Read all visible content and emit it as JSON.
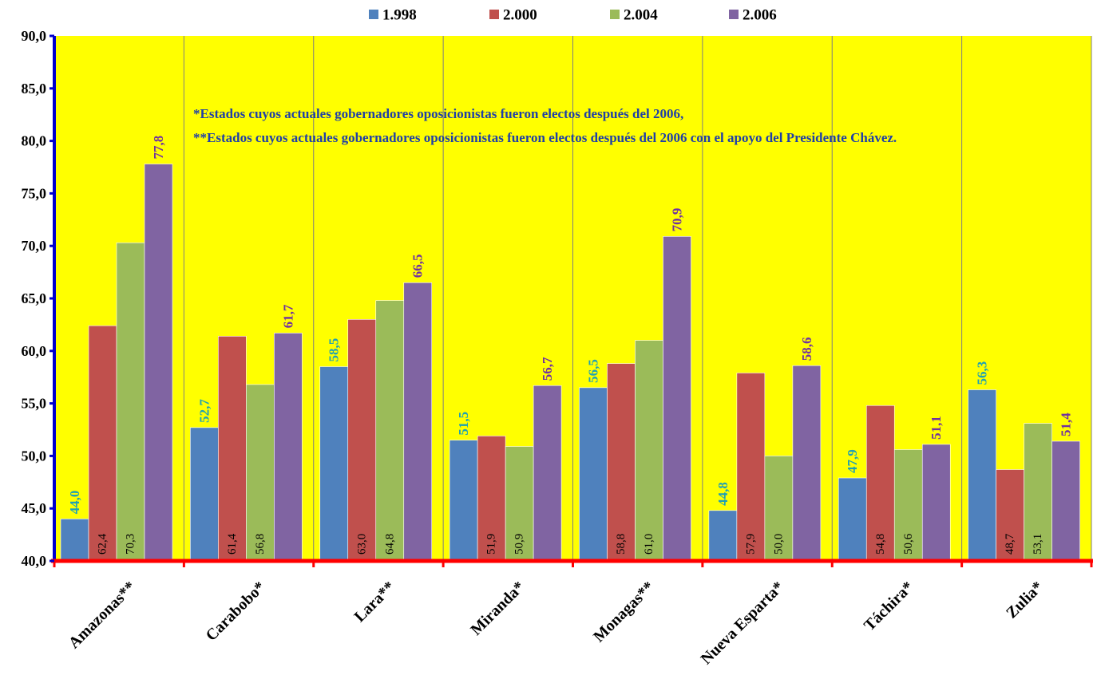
{
  "chart_data": {
    "type": "bar",
    "title": "",
    "xlabel": "",
    "ylabel": "",
    "ylim": [
      40,
      90
    ],
    "yticks": [
      "40,0",
      "45,0",
      "50,0",
      "55,0",
      "60,0",
      "65,0",
      "70,0",
      "75,0",
      "80,0",
      "85,0",
      "90,0"
    ],
    "ytick_values": [
      40,
      45,
      50,
      55,
      60,
      65,
      70,
      75,
      80,
      85,
      90
    ],
    "legend_position": "top-center",
    "grid": "vertical separators between categories",
    "background": "#ffff00",
    "categories": [
      "Amazonas**",
      "Carabobo*",
      "Lara**",
      "Miranda*",
      "Monagas**",
      "Nueva Esparta*",
      "Táchira*",
      "Zulia*"
    ],
    "series": [
      {
        "name": "1.998",
        "color": "#4f81bd",
        "values": [
          44.0,
          52.7,
          58.5,
          51.5,
          56.5,
          44.8,
          47.9,
          56.3
        ],
        "labels": [
          "44,0",
          "52,7",
          "58,5",
          "51,5",
          "56,5",
          "44,8",
          "47,9",
          "56,3"
        ],
        "label_style": "top",
        "label_color": "#1fa0b4"
      },
      {
        "name": "2.000",
        "color": "#c0504d",
        "values": [
          62.4,
          61.4,
          63.0,
          51.9,
          58.8,
          57.9,
          54.8,
          48.7
        ],
        "labels": [
          "62,4",
          "61,4",
          "63,0",
          "51,9",
          "58,8",
          "57,9",
          "54,8",
          "48,7"
        ],
        "label_style": "inside"
      },
      {
        "name": "2.004",
        "color": "#9bbb59",
        "values": [
          70.3,
          56.8,
          64.8,
          50.9,
          61.0,
          50.0,
          50.6,
          53.1
        ],
        "labels": [
          "70,3",
          "56,8",
          "64,8",
          "50,9",
          "61,0",
          "50,0",
          "50,6",
          "53,1"
        ],
        "label_style": "inside"
      },
      {
        "name": "2.006",
        "color": "#8064a2",
        "values": [
          77.8,
          61.7,
          66.5,
          56.7,
          70.9,
          58.6,
          51.1,
          51.4
        ],
        "labels": [
          "77,8",
          "61,7",
          "66,5",
          "56,7",
          "70,9",
          "58,6",
          "51,1",
          "51,4"
        ],
        "label_style": "top",
        "label_color": "#7030a0"
      }
    ],
    "annotations": [
      "*Estados cuyos actuales gobernadores oposicionistas  fueron electos después del 2006,",
      "**Estados cuyos actuales  gobernadores oposicionistas  fueron electos después del 2006 con  el apoyo del Presidente Chávez."
    ]
  }
}
